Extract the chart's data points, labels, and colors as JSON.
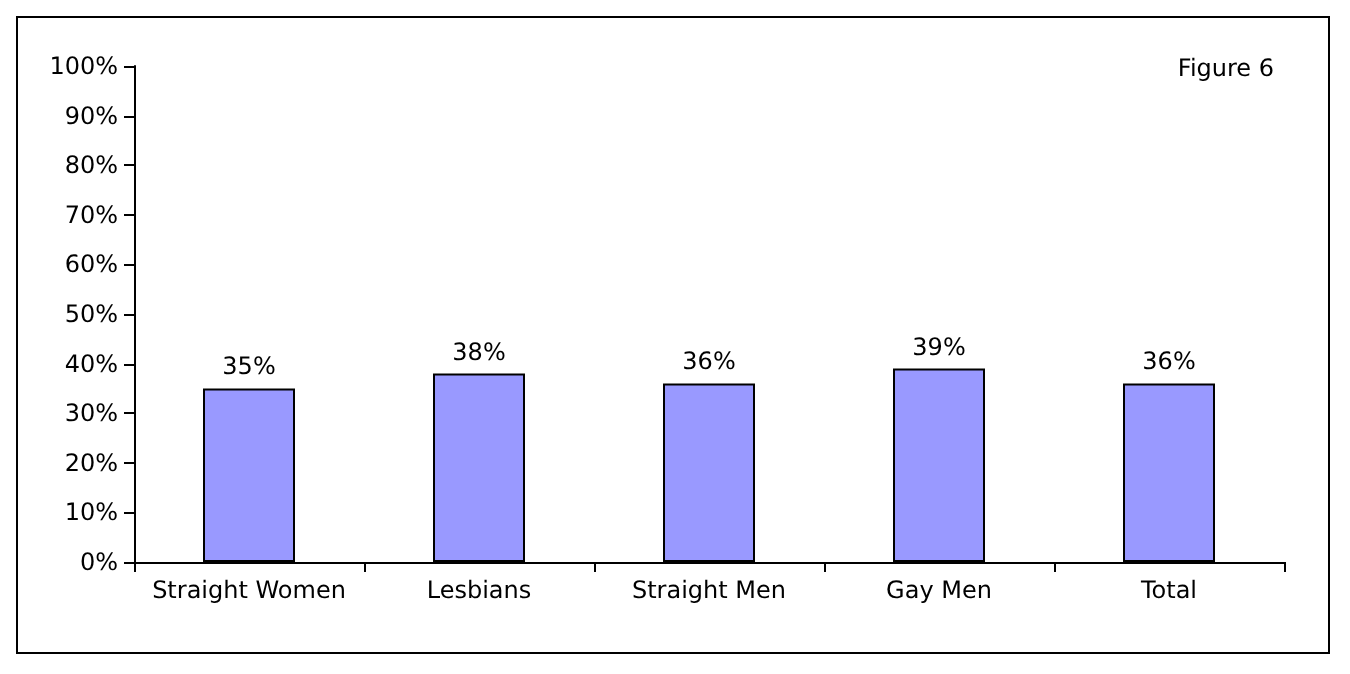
{
  "chart_data": {
    "type": "bar",
    "title": "Figure 6",
    "categories": [
      "Straight Women",
      "Lesbians",
      "Straight Men",
      "Gay Men",
      "Total"
    ],
    "values": [
      35,
      38,
      36,
      39,
      36
    ],
    "value_labels": [
      "35%",
      "38%",
      "36%",
      "39%",
      "36%"
    ],
    "color": "#9999ff",
    "ylim": [
      0,
      100
    ],
    "yticks": [
      {
        "value": 0,
        "label": "0%"
      },
      {
        "value": 10,
        "label": "10%"
      },
      {
        "value": 20,
        "label": "20%"
      },
      {
        "value": 30,
        "label": "30%"
      },
      {
        "value": 40,
        "label": "40%"
      },
      {
        "value": 50,
        "label": "50%"
      },
      {
        "value": 60,
        "label": "60%"
      },
      {
        "value": 70,
        "label": "70%"
      },
      {
        "value": 80,
        "label": "80%"
      },
      {
        "value": 90,
        "label": "90%"
      },
      {
        "value": 100,
        "label": "100%"
      }
    ],
    "grid": false
  }
}
